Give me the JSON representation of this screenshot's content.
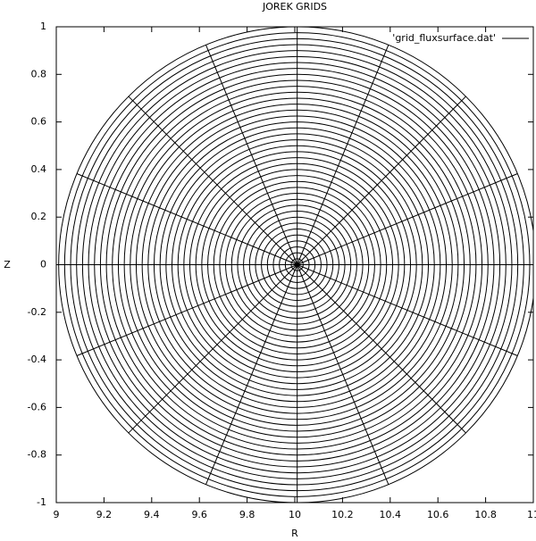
{
  "chart_data": {
    "type": "polar-grid",
    "title": "JOREK GRIDS",
    "xlabel": "R",
    "ylabel": "Z",
    "series": [
      {
        "name": "'grid_fluxsurface.dat'",
        "color": "#000000",
        "center": [
          10.01,
          0
        ],
        "radii": [
          0.025,
          0.05,
          0.075,
          0.1,
          0.125,
          0.15,
          0.175,
          0.2,
          0.225,
          0.25,
          0.275,
          0.3,
          0.325,
          0.35,
          0.375,
          0.4,
          0.425,
          0.45,
          0.475,
          0.5,
          0.525,
          0.55,
          0.575,
          0.6,
          0.625,
          0.65,
          0.675,
          0.7,
          0.725,
          0.75,
          0.775,
          0.8,
          0.825,
          0.85,
          0.875,
          0.9,
          0.925,
          0.95,
          0.975,
          1.0
        ],
        "spoke_angles": [
          0,
          22.5,
          45,
          67.5,
          90,
          112.5,
          135,
          157.5,
          180,
          202.5,
          225,
          247.5,
          270,
          292.5,
          315,
          337.5
        ]
      }
    ],
    "xlim": [
      9,
      11
    ],
    "xticks": [
      9,
      9.2,
      9.4,
      9.6,
      9.8,
      10,
      10.2,
      10.4,
      10.6,
      10.8,
      11
    ],
    "ylim": [
      -1,
      1
    ],
    "yticks": [
      -1,
      -0.8,
      -0.6,
      -0.4,
      -0.2,
      0,
      0.2,
      0.4,
      0.6,
      0.8,
      1
    ],
    "legend": "top-right"
  }
}
